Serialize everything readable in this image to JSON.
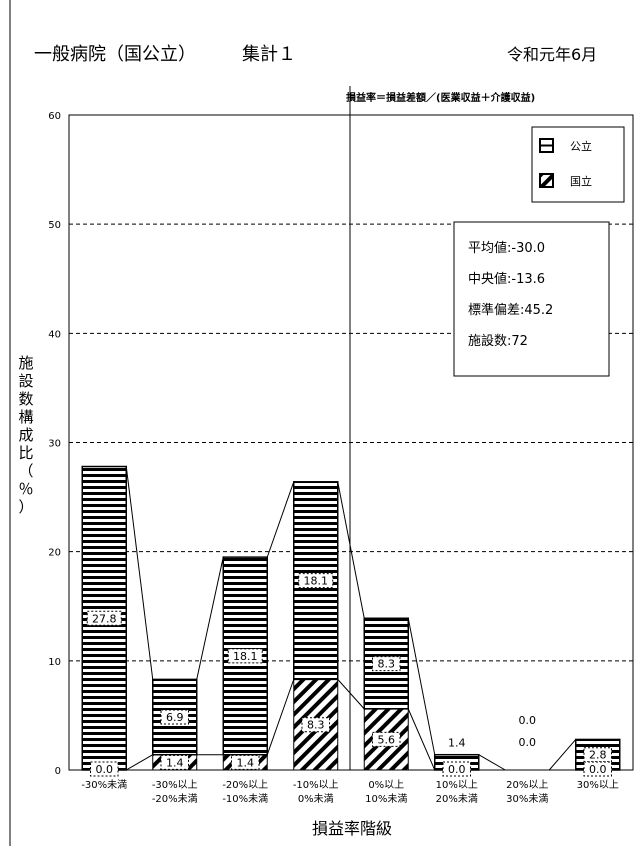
{
  "header": {
    "title": "一般病院（国公立）",
    "subtitle": "集計１",
    "date": "令和元年6月"
  },
  "formula": "損益率＝損益差額／(医業収益＋介護収益)",
  "stats_box": {
    "mean": "平均値:-30.0",
    "median": "中央値:-13.6",
    "std": "標準偏差:45.2",
    "count": "施設数:72"
  },
  "chart_data": {
    "type": "bar",
    "stacked": true,
    "categories": [
      [
        "-30%未満"
      ],
      [
        "-30%以上",
        "-20%未満"
      ],
      [
        "-20%以上",
        "-10%未満"
      ],
      [
        "-10%以上",
        "0%未満"
      ],
      [
        "0%以上",
        "10%未満"
      ],
      [
        "10%以上",
        "20%未満"
      ],
      [
        "20%以上",
        "30%未満"
      ],
      [
        "30%以上"
      ]
    ],
    "series": [
      {
        "name": "国立",
        "values": [
          0.0,
          1.4,
          1.4,
          8.3,
          5.6,
          0.0,
          0.0,
          0.0
        ],
        "labels": [
          "0.0",
          "1.4",
          "1.4",
          "8.3",
          "5.6",
          "0.0",
          "0.0",
          "0.0"
        ]
      },
      {
        "name": "公立",
        "values": [
          27.8,
          6.9,
          18.1,
          18.1,
          8.3,
          1.4,
          0.0,
          2.8
        ],
        "labels": [
          "27.8",
          "6.9",
          "18.1",
          "18.1",
          "8.3",
          "1.4",
          "0.0",
          "2.8"
        ]
      }
    ],
    "ylabel": "施設数構成比（％）",
    "xlabel": "損益率階級",
    "ylim": [
      0,
      60
    ],
    "yticks": [
      "0",
      "10",
      "20",
      "30",
      "40",
      "50",
      "60"
    ],
    "grid": true,
    "legend_position": "top-right"
  }
}
